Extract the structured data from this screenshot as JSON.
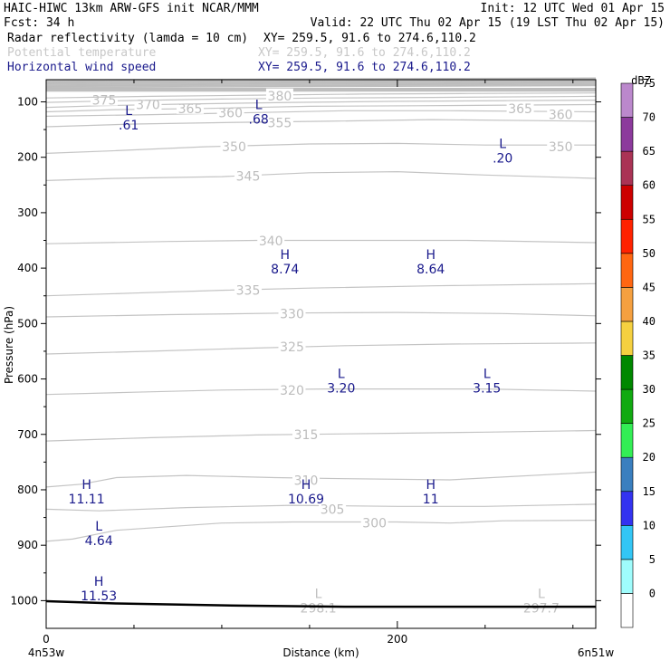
{
  "header": {
    "title": "HAIC-HIWC 13km ARW-GFS init   NCAR/MMM",
    "init": "Init: 12 UTC Wed 01 Apr 15",
    "fcst": "Fcst:   34 h",
    "valid": "Valid: 22 UTC Thu 02 Apr 15 (19 LST Thu 02 Apr 15)",
    "fields": [
      {
        "label": "Radar reflectivity (lamda = 10 cm)",
        "xy": "XY= 259.5, 91.6 to 274.6,110.2",
        "color": "#000000"
      },
      {
        "label": "Potential temperature",
        "xy": "XY= 259.5, 91.6 to 274.6,110.2",
        "color": "#c8c8c8"
      },
      {
        "label": "Horizontal wind speed",
        "xy": "XY= 259.5, 91.6 to 274.6,110.2",
        "color": "#1a1a8c"
      }
    ]
  },
  "chart_data": {
    "type": "contour cross-section",
    "xlabel": "Distance (km)",
    "ylabel": "Pressure (hPa)",
    "xlim": [
      0,
      313
    ],
    "ylim": [
      1050,
      60
    ],
    "x_ticks": [
      0,
      200
    ],
    "y_ticks": [
      100,
      200,
      300,
      400,
      500,
      600,
      700,
      800,
      900,
      1000
    ],
    "endpoints": {
      "left": "4n53w",
      "right": "6n51w"
    },
    "colorbar": {
      "unit": "dBZ",
      "levels": [
        0,
        5,
        10,
        15,
        20,
        25,
        30,
        35,
        40,
        45,
        50,
        55,
        60,
        65,
        70,
        75
      ],
      "colors": [
        "#ffffff",
        "#9ffcfc",
        "#33c6f5",
        "#3333f0",
        "#3a7fbf",
        "#33ee55",
        "#11aa11",
        "#008800",
        "#f5d040",
        "#f5a040",
        "#ff6611",
        "#ff2200",
        "#cc0000",
        "#aa3355",
        "#8c3a9c",
        "#bb88cc"
      ]
    },
    "theta_contours": [
      {
        "value": 300,
        "label_x": 187,
        "label_p": 860,
        "points": [
          [
            0,
            893
          ],
          [
            15,
            889
          ],
          [
            40,
            873
          ],
          [
            100,
            860
          ],
          [
            140,
            858
          ],
          [
            200,
            858
          ],
          [
            230,
            860
          ],
          [
            260,
            856
          ],
          [
            313,
            855
          ]
        ]
      },
      {
        "value": 305,
        "label_x": 163,
        "label_p": 835,
        "points": [
          [
            0,
            835
          ],
          [
            30,
            838
          ],
          [
            80,
            832
          ],
          [
            140,
            828
          ],
          [
            200,
            830
          ],
          [
            250,
            830
          ],
          [
            313,
            826
          ]
        ]
      },
      {
        "value": 310,
        "label_x": 148,
        "label_p": 783,
        "points": [
          [
            0,
            795
          ],
          [
            20,
            790
          ],
          [
            40,
            778
          ],
          [
            80,
            774
          ],
          [
            130,
            778
          ],
          [
            170,
            780
          ],
          [
            230,
            782
          ],
          [
            313,
            768
          ]
        ]
      },
      {
        "value": 315,
        "label_x": 148,
        "label_p": 700,
        "points": [
          [
            0,
            712
          ],
          [
            60,
            706
          ],
          [
            120,
            701
          ],
          [
            200,
            698
          ],
          [
            250,
            696
          ],
          [
            313,
            693
          ]
        ]
      },
      {
        "value": 320,
        "label_x": 140,
        "label_p": 620,
        "points": [
          [
            0,
            628
          ],
          [
            50,
            624
          ],
          [
            100,
            620
          ],
          [
            160,
            618
          ],
          [
            200,
            618
          ],
          [
            250,
            618
          ],
          [
            313,
            622
          ]
        ]
      },
      {
        "value": 325,
        "label_x": 140,
        "label_p": 542,
        "points": [
          [
            0,
            555
          ],
          [
            60,
            550
          ],
          [
            110,
            545
          ],
          [
            170,
            540
          ],
          [
            230,
            537
          ],
          [
            313,
            535
          ]
        ]
      },
      {
        "value": 330,
        "label_x": 140,
        "label_p": 482,
        "points": [
          [
            0,
            488
          ],
          [
            70,
            484
          ],
          [
            140,
            481
          ],
          [
            200,
            480
          ],
          [
            260,
            482
          ],
          [
            313,
            486
          ]
        ]
      },
      {
        "value": 335,
        "label_x": 115,
        "label_p": 440,
        "points": [
          [
            0,
            450
          ],
          [
            50,
            445
          ],
          [
            100,
            440
          ],
          [
            150,
            436
          ],
          [
            220,
            432
          ],
          [
            313,
            428
          ]
        ]
      },
      {
        "value": 340,
        "label_x": 128,
        "label_p": 351,
        "points": [
          [
            0,
            356
          ],
          [
            70,
            352
          ],
          [
            120,
            350
          ],
          [
            180,
            350
          ],
          [
            240,
            350
          ],
          [
            313,
            354
          ]
        ]
      },
      {
        "value": 345,
        "label_x": 115,
        "label_p": 234,
        "points": [
          [
            0,
            242
          ],
          [
            40,
            238
          ],
          [
            100,
            235
          ],
          [
            150,
            228
          ],
          [
            200,
            226
          ],
          [
            250,
            232
          ],
          [
            313,
            238
          ]
        ]
      },
      {
        "value": 350,
        "label_x": 107,
        "label_p": 181,
        "points": [
          [
            0,
            193
          ],
          [
            40,
            188
          ],
          [
            90,
            181
          ],
          [
            150,
            176
          ],
          [
            200,
            175
          ],
          [
            250,
            178
          ],
          [
            313,
            178
          ]
        ]
      },
      {
        "value": 355,
        "label_x": 133,
        "label_p": 138,
        "points": [
          [
            0,
            145
          ],
          [
            50,
            140
          ],
          [
            110,
            137
          ],
          [
            160,
            135
          ],
          [
            220,
            132
          ],
          [
            313,
            135
          ]
        ]
      },
      {
        "value": 360,
        "label_x": 105,
        "label_p": 120,
        "points": [
          [
            0,
            126
          ],
          [
            60,
            123
          ],
          [
            110,
            120
          ],
          [
            170,
            116
          ],
          [
            230,
            116
          ],
          [
            313,
            118
          ]
        ]
      },
      {
        "value": 365,
        "label_x": 82,
        "label_p": 112,
        "points": [
          [
            0,
            118
          ],
          [
            40,
            114
          ],
          [
            90,
            112
          ],
          [
            150,
            108
          ],
          [
            210,
            107
          ],
          [
            313,
            105
          ]
        ]
      },
      {
        "value": 370,
        "label_x": 58,
        "label_p": 105,
        "points": [
          [
            0,
            110
          ],
          [
            30,
            107
          ],
          [
            80,
            104
          ],
          [
            140,
            101
          ],
          [
            200,
            99
          ],
          [
            313,
            97
          ]
        ]
      },
      {
        "value": 375,
        "label_x": 33,
        "label_p": 97,
        "points": [
          [
            0,
            101
          ],
          [
            40,
            98
          ],
          [
            100,
            95
          ],
          [
            160,
            93
          ],
          [
            220,
            92
          ],
          [
            313,
            90
          ]
        ]
      },
      {
        "value": 380,
        "label_x": 133,
        "label_p": 89,
        "points": [
          [
            0,
            93
          ],
          [
            60,
            90
          ],
          [
            120,
            88
          ],
          [
            180,
            86
          ],
          [
            240,
            85
          ],
          [
            313,
            84
          ]
        ]
      }
    ],
    "theta_label_right": [
      {
        "value": 365,
        "x": 270,
        "p": 112
      },
      {
        "value": 360,
        "x": 293,
        "p": 123
      },
      {
        "value": 350,
        "x": 293,
        "p": 181
      }
    ],
    "extrema": [
      {
        "type": "L",
        "value": ".61",
        "x": 47,
        "p": 130,
        "color": "#1a1a8c"
      },
      {
        "type": "L",
        "value": ".68",
        "x": 121,
        "p": 120,
        "color": "#1a1a8c"
      },
      {
        "type": "L",
        "value": ".20",
        "x": 260,
        "p": 190,
        "color": "#1a1a8c"
      },
      {
        "type": "H",
        "value": "8.74",
        "x": 136,
        "p": 390,
        "color": "#1a1a8c"
      },
      {
        "type": "H",
        "value": "8.64",
        "x": 219,
        "p": 390,
        "color": "#1a1a8c"
      },
      {
        "type": "L",
        "value": "3.20",
        "x": 168,
        "p": 605,
        "color": "#1a1a8c"
      },
      {
        "type": "L",
        "value": "3.15",
        "x": 251,
        "p": 605,
        "color": "#1a1a8c"
      },
      {
        "type": "H",
        "value": "11.11",
        "x": 23,
        "p": 805,
        "color": "#1a1a8c"
      },
      {
        "type": "H",
        "value": "10.69",
        "x": 148,
        "p": 805,
        "color": "#1a1a8c"
      },
      {
        "type": "H",
        "value": "11",
        "x": 219,
        "p": 805,
        "color": "#1a1a8c"
      },
      {
        "type": "L",
        "value": "4.64",
        "x": 30,
        "p": 880,
        "color": "#1a1a8c"
      },
      {
        "type": "H",
        "value": "11.53",
        "x": 30,
        "p": 980,
        "color": "#1a1a8c"
      },
      {
        "type": "L",
        "value": "298.1",
        "x": 155,
        "p": 1002,
        "color": "#c0c0c0"
      },
      {
        "type": "L",
        "value": "297.7",
        "x": 282,
        "p": 1002,
        "color": "#c0c0c0"
      }
    ],
    "surface_pressure": [
      [
        0,
        1001
      ],
      [
        40,
        1005
      ],
      [
        110,
        1009
      ],
      [
        170,
        1011
      ],
      [
        240,
        1011
      ],
      [
        313,
        1011
      ]
    ],
    "dense_region_top": {
      "from_p": 60,
      "to_p": 82
    }
  }
}
